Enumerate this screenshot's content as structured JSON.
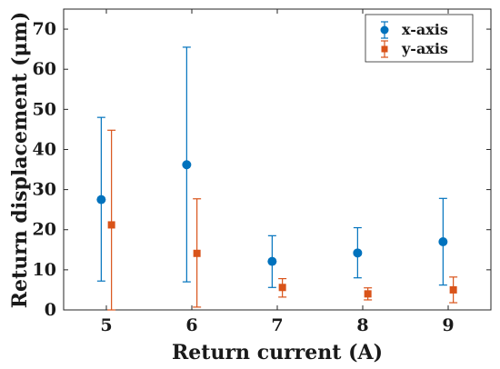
{
  "chart_data": {
    "type": "scatter",
    "xlabel": "Return current (A)",
    "ylabel": "Return displacement (μm)",
    "xlim": [
      4.5,
      9.5
    ],
    "ylim": [
      0,
      75
    ],
    "x_ticks": [
      5,
      6,
      7,
      8,
      9
    ],
    "y_ticks": [
      0,
      10,
      20,
      30,
      40,
      50,
      60,
      70
    ],
    "grid": false,
    "legend_position": "top-right",
    "series": [
      {
        "name": "x-axis",
        "marker": "circle",
        "color": "#0072BD",
        "points": [
          {
            "x": 5,
            "y": 27.5,
            "low": 7.2,
            "high": 48.0
          },
          {
            "x": 6,
            "y": 36.2,
            "low": 7.0,
            "high": 65.5
          },
          {
            "x": 7,
            "y": 12.1,
            "low": 5.6,
            "high": 18.5
          },
          {
            "x": 8,
            "y": 14.2,
            "low": 8.0,
            "high": 20.5
          },
          {
            "x": 9,
            "y": 17.0,
            "low": 6.2,
            "high": 27.8
          }
        ]
      },
      {
        "name": "y-axis",
        "marker": "square",
        "color": "#D95319",
        "points": [
          {
            "x": 5,
            "y": 21.2,
            "low": 0.0,
            "high": 44.8
          },
          {
            "x": 6,
            "y": 14.1,
            "low": 0.7,
            "high": 27.7
          },
          {
            "x": 7,
            "y": 5.6,
            "low": 3.2,
            "high": 7.8
          },
          {
            "x": 8,
            "y": 4.0,
            "low": 2.5,
            "high": 5.5
          },
          {
            "x": 9,
            "y": 5.0,
            "low": 1.8,
            "high": 8.2
          }
        ]
      }
    ]
  }
}
